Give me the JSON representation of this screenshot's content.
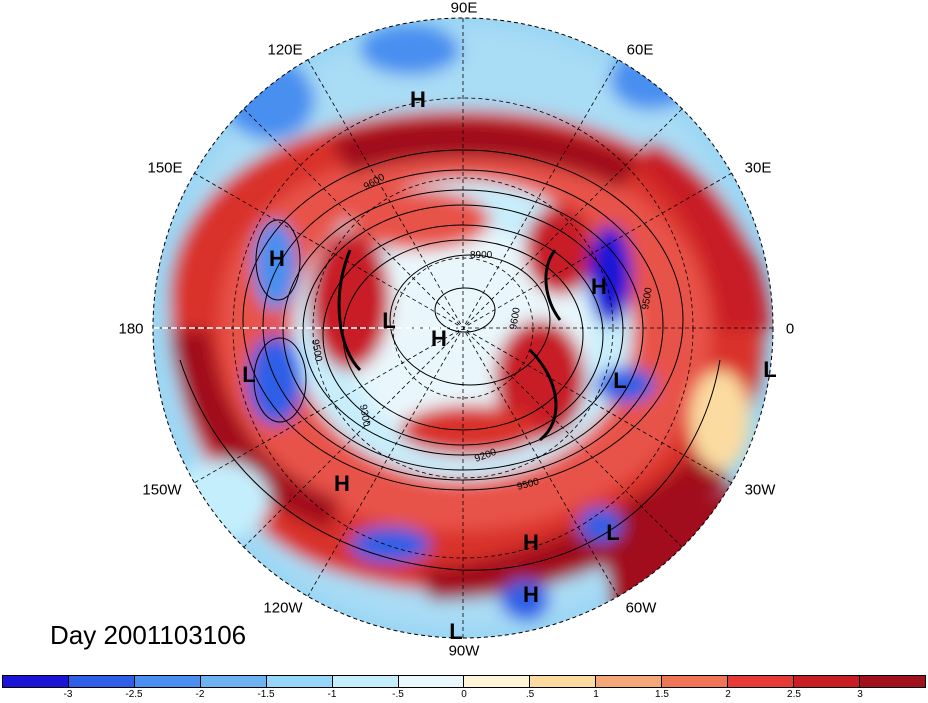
{
  "title": "Day 2001103106",
  "longitude_labels": [
    {
      "id": "90e",
      "text": "90E"
    },
    {
      "id": "60e",
      "text": "60E"
    },
    {
      "id": "120e",
      "text": "120E"
    },
    {
      "id": "150e",
      "text": "150E"
    },
    {
      "id": "30e",
      "text": "30E"
    },
    {
      "id": "180",
      "text": "180"
    },
    {
      "id": "0",
      "text": "0"
    },
    {
      "id": "150w",
      "text": "150W"
    },
    {
      "id": "30w",
      "text": "30W"
    },
    {
      "id": "120w",
      "text": "120W"
    },
    {
      "id": "60w",
      "text": "60W"
    },
    {
      "id": "90w",
      "text": "90W"
    }
  ],
  "pressure_systems": [
    {
      "id": "h1",
      "text": "H"
    },
    {
      "id": "h2",
      "text": "H"
    },
    {
      "id": "l1",
      "text": "L"
    },
    {
      "id": "h3",
      "text": "H"
    },
    {
      "id": "h4",
      "text": "H"
    },
    {
      "id": "l2",
      "text": "L"
    },
    {
      "id": "l3",
      "text": "L"
    },
    {
      "id": "l4",
      "text": "L"
    },
    {
      "id": "h5",
      "text": "H"
    },
    {
      "id": "h6",
      "text": "H"
    },
    {
      "id": "l5",
      "text": "L"
    },
    {
      "id": "h7",
      "text": "H"
    },
    {
      "id": "l6",
      "text": "L"
    }
  ],
  "contour_labels": [
    "9600",
    "8900",
    "9500",
    "9500",
    "9600",
    "9300",
    "9200",
    "9500"
  ],
  "colorbar": {
    "colors": [
      "#1a14d6",
      "#2e5fe6",
      "#4a8ff0",
      "#6db3f2",
      "#96d6f8",
      "#c4eefc",
      "#eaf8fd",
      "#fdf5d6",
      "#fbdba0",
      "#f4a877",
      "#ee7556",
      "#e63a38",
      "#c81d25",
      "#a1101d"
    ],
    "ticks": [
      "-3",
      "-2.5",
      "-2",
      "-1.5",
      "-1",
      "-.5",
      "0",
      ".5",
      "1",
      "1.5",
      "2",
      "2.5",
      "3"
    ]
  }
}
